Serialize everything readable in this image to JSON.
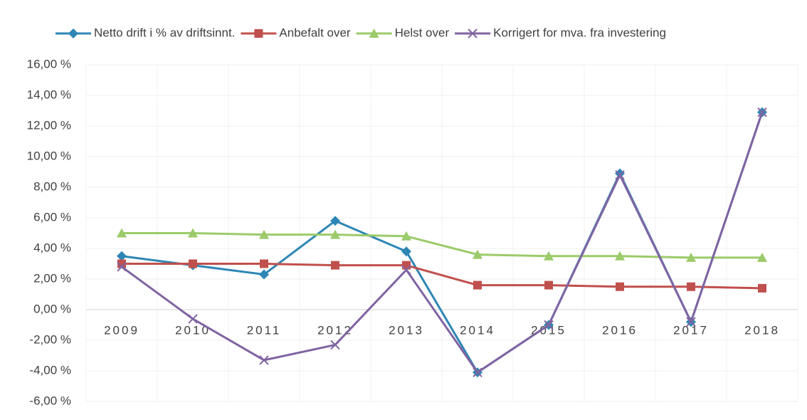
{
  "chart_data": {
    "type": "line",
    "categories": [
      "2009",
      "2010",
      "2011",
      "2012",
      "2013",
      "2014",
      "2015",
      "2016",
      "2017",
      "2018"
    ],
    "series": [
      {
        "name": "Netto drift i % av driftsinnt.",
        "color": "#2e86b5",
        "marker": "diamond",
        "values": [
          3.5,
          2.9,
          2.3,
          5.8,
          3.8,
          -4.1,
          -1.0,
          8.9,
          -0.8,
          12.9
        ]
      },
      {
        "name": "Anbefalt over",
        "color": "#c0504d",
        "marker": "square",
        "values": [
          3.0,
          3.0,
          3.0,
          2.9,
          2.9,
          1.6,
          1.6,
          1.5,
          1.5,
          1.4
        ]
      },
      {
        "name": "Helst over",
        "color": "#9bcb6a",
        "marker": "triangle",
        "values": [
          5.0,
          5.0,
          4.9,
          4.9,
          4.8,
          3.6,
          3.5,
          3.5,
          3.4,
          3.4
        ]
      },
      {
        "name": "Korrigert for mva. fra investering",
        "color": "#8064a2",
        "marker": "x",
        "values": [
          2.8,
          -0.6,
          -3.3,
          -2.3,
          2.6,
          -4.1,
          -1.0,
          8.8,
          -0.8,
          12.9
        ]
      }
    ],
    "ylim": [
      -6,
      16
    ],
    "yticks": [
      {
        "value": -6,
        "label": "-6,00 %"
      },
      {
        "value": -4,
        "label": "-4,00 %"
      },
      {
        "value": -2,
        "label": "-2,00 %"
      },
      {
        "value": 0,
        "label": "0,00 %"
      },
      {
        "value": 2,
        "label": "2,00 %"
      },
      {
        "value": 4,
        "label": "4,00 %"
      },
      {
        "value": 6,
        "label": "6,00 %"
      },
      {
        "value": 8,
        "label": "8,00 %"
      },
      {
        "value": 10,
        "label": "10,00 %"
      },
      {
        "value": 12,
        "label": "12,00 %"
      },
      {
        "value": 14,
        "label": "14,00 %"
      },
      {
        "value": 16,
        "label": "16,00 %"
      }
    ],
    "grid": true,
    "legend": "top"
  }
}
